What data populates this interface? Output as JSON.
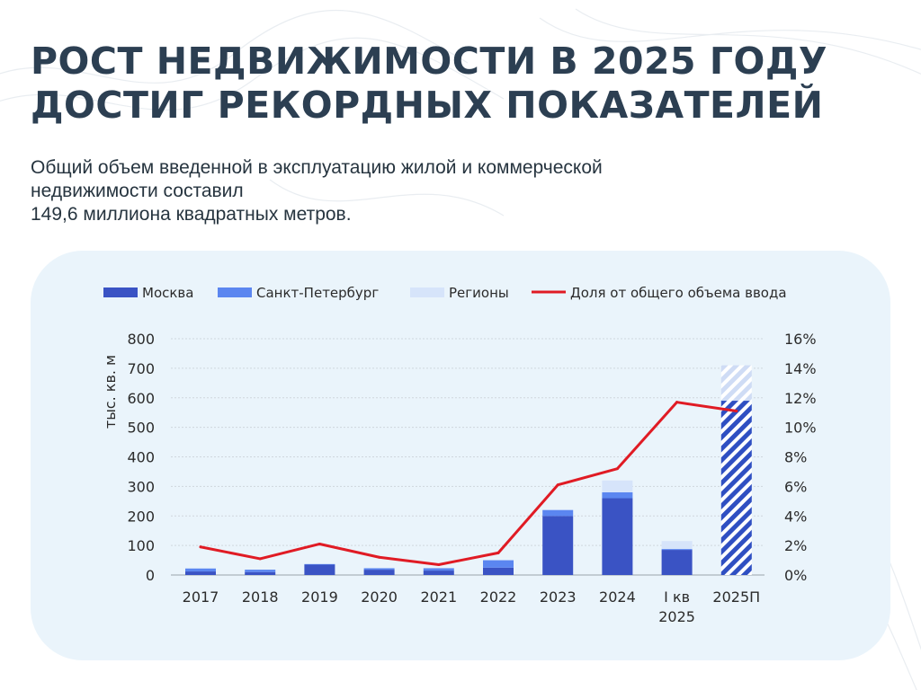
{
  "header": {
    "title_line1": "РОСТ НЕДВИЖИМОСТИ В 2025 ГОДУ",
    "title_line2": "ДОСТИГ РЕКОРДНЫХ ПОКАЗАТЕЛЕЙ",
    "subtitle_line1": "Общий объем введенной в эксплуатацию жилой и коммерческой",
    "subtitle_line2": "недвижимости составил",
    "subtitle_line3": "149,6 миллиона квадратных метров."
  },
  "colors": {
    "moscow": "#3a53c4",
    "spb": "#5b86f0",
    "regions": "#d6e4fa",
    "share": "#e01b24",
    "forecast": "#2f4fc2",
    "axis_text": "#2b2b2b"
  },
  "chart_data": {
    "type": "bar",
    "stacked": true,
    "categories": [
      "2017",
      "2018",
      "2019",
      "2020",
      "2021",
      "2022",
      "2023",
      "2024",
      "I кв\n2025",
      "2025П"
    ],
    "forecast_category": "2025П",
    "series": [
      {
        "name": "Москва",
        "values": [
          12,
          10,
          35,
          18,
          15,
          25,
          200,
          260,
          85,
          590
        ]
      },
      {
        "name": "Санкт-Петербург",
        "values": [
          10,
          8,
          2,
          5,
          8,
          25,
          20,
          20,
          3,
          0
        ]
      },
      {
        "name": "Регионы",
        "values": [
          0,
          0,
          0,
          0,
          0,
          0,
          0,
          40,
          27,
          120
        ]
      }
    ],
    "line_series": {
      "name": "Доля от общего объема ввода",
      "axis": "right",
      "values": [
        1.9,
        1.1,
        2.1,
        1.2,
        0.7,
        1.5,
        6.1,
        7.2,
        11.7,
        11.1
      ]
    },
    "ylabel": "тыс. кв. м",
    "ylim": [
      0,
      800
    ],
    "yticks": [
      "0",
      "100",
      "200",
      "300",
      "400",
      "500",
      "600",
      "700",
      "800"
    ],
    "y2lim": [
      0,
      16
    ],
    "y2ticks": [
      "0%",
      "2%",
      "4%",
      "6%",
      "8%",
      "10%",
      "12%",
      "14%",
      "16%"
    ],
    "grid": true,
    "legend_position": "top"
  }
}
